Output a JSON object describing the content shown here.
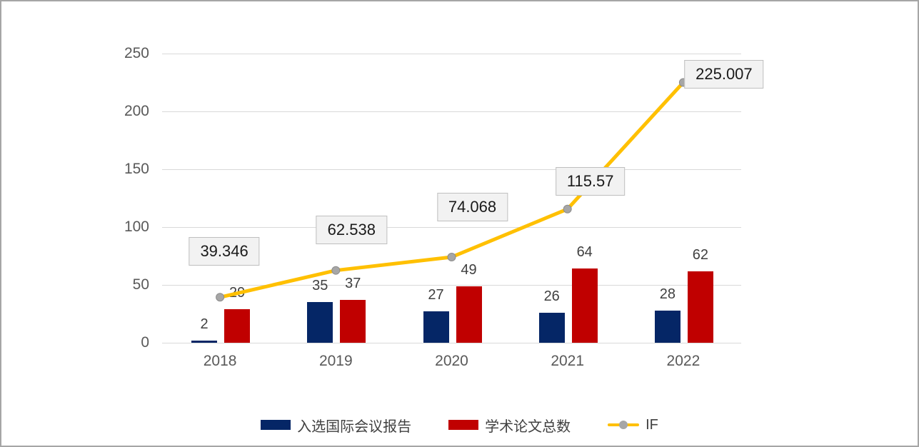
{
  "chart_data": {
    "type": "combo",
    "categories": [
      "2018",
      "2019",
      "2020",
      "2021",
      "2022"
    ],
    "series": [
      {
        "name": "入选国际会议报告",
        "type": "bar",
        "color": "#052666",
        "values": [
          2,
          35,
          27,
          26,
          28
        ],
        "value_labels": [
          "2",
          "35",
          "27",
          "26",
          "28"
        ]
      },
      {
        "name": "学术论文总数",
        "type": "bar",
        "color": "#c00000",
        "values": [
          29,
          37,
          49,
          64,
          62
        ],
        "value_labels": [
          "29",
          "37",
          "49",
          "64",
          "62"
        ]
      },
      {
        "name": "IF",
        "type": "line",
        "color": "#ffc000",
        "marker_color": "#a6a6a6",
        "marker_edge_color": "#8c8c8c",
        "values": [
          39.346,
          62.538,
          74.068,
          115.57,
          225.007
        ],
        "value_labels": [
          "39.346",
          "62.538",
          "74.068",
          "115.57",
          "225.007"
        ]
      }
    ],
    "y_axis": {
      "min": 0,
      "max": 250,
      "step": 50,
      "ticks": [
        "0",
        "50",
        "100",
        "150",
        "200",
        "250"
      ]
    },
    "x_axis": {
      "labels": [
        "2018",
        "2019",
        "2020",
        "2021",
        "2022"
      ]
    },
    "grid": true,
    "gridline_color": "#d9d9d9",
    "legend_position": "bottom",
    "label_box": {
      "background": "#f2f2f2",
      "border": "#bfbfbf"
    }
  }
}
